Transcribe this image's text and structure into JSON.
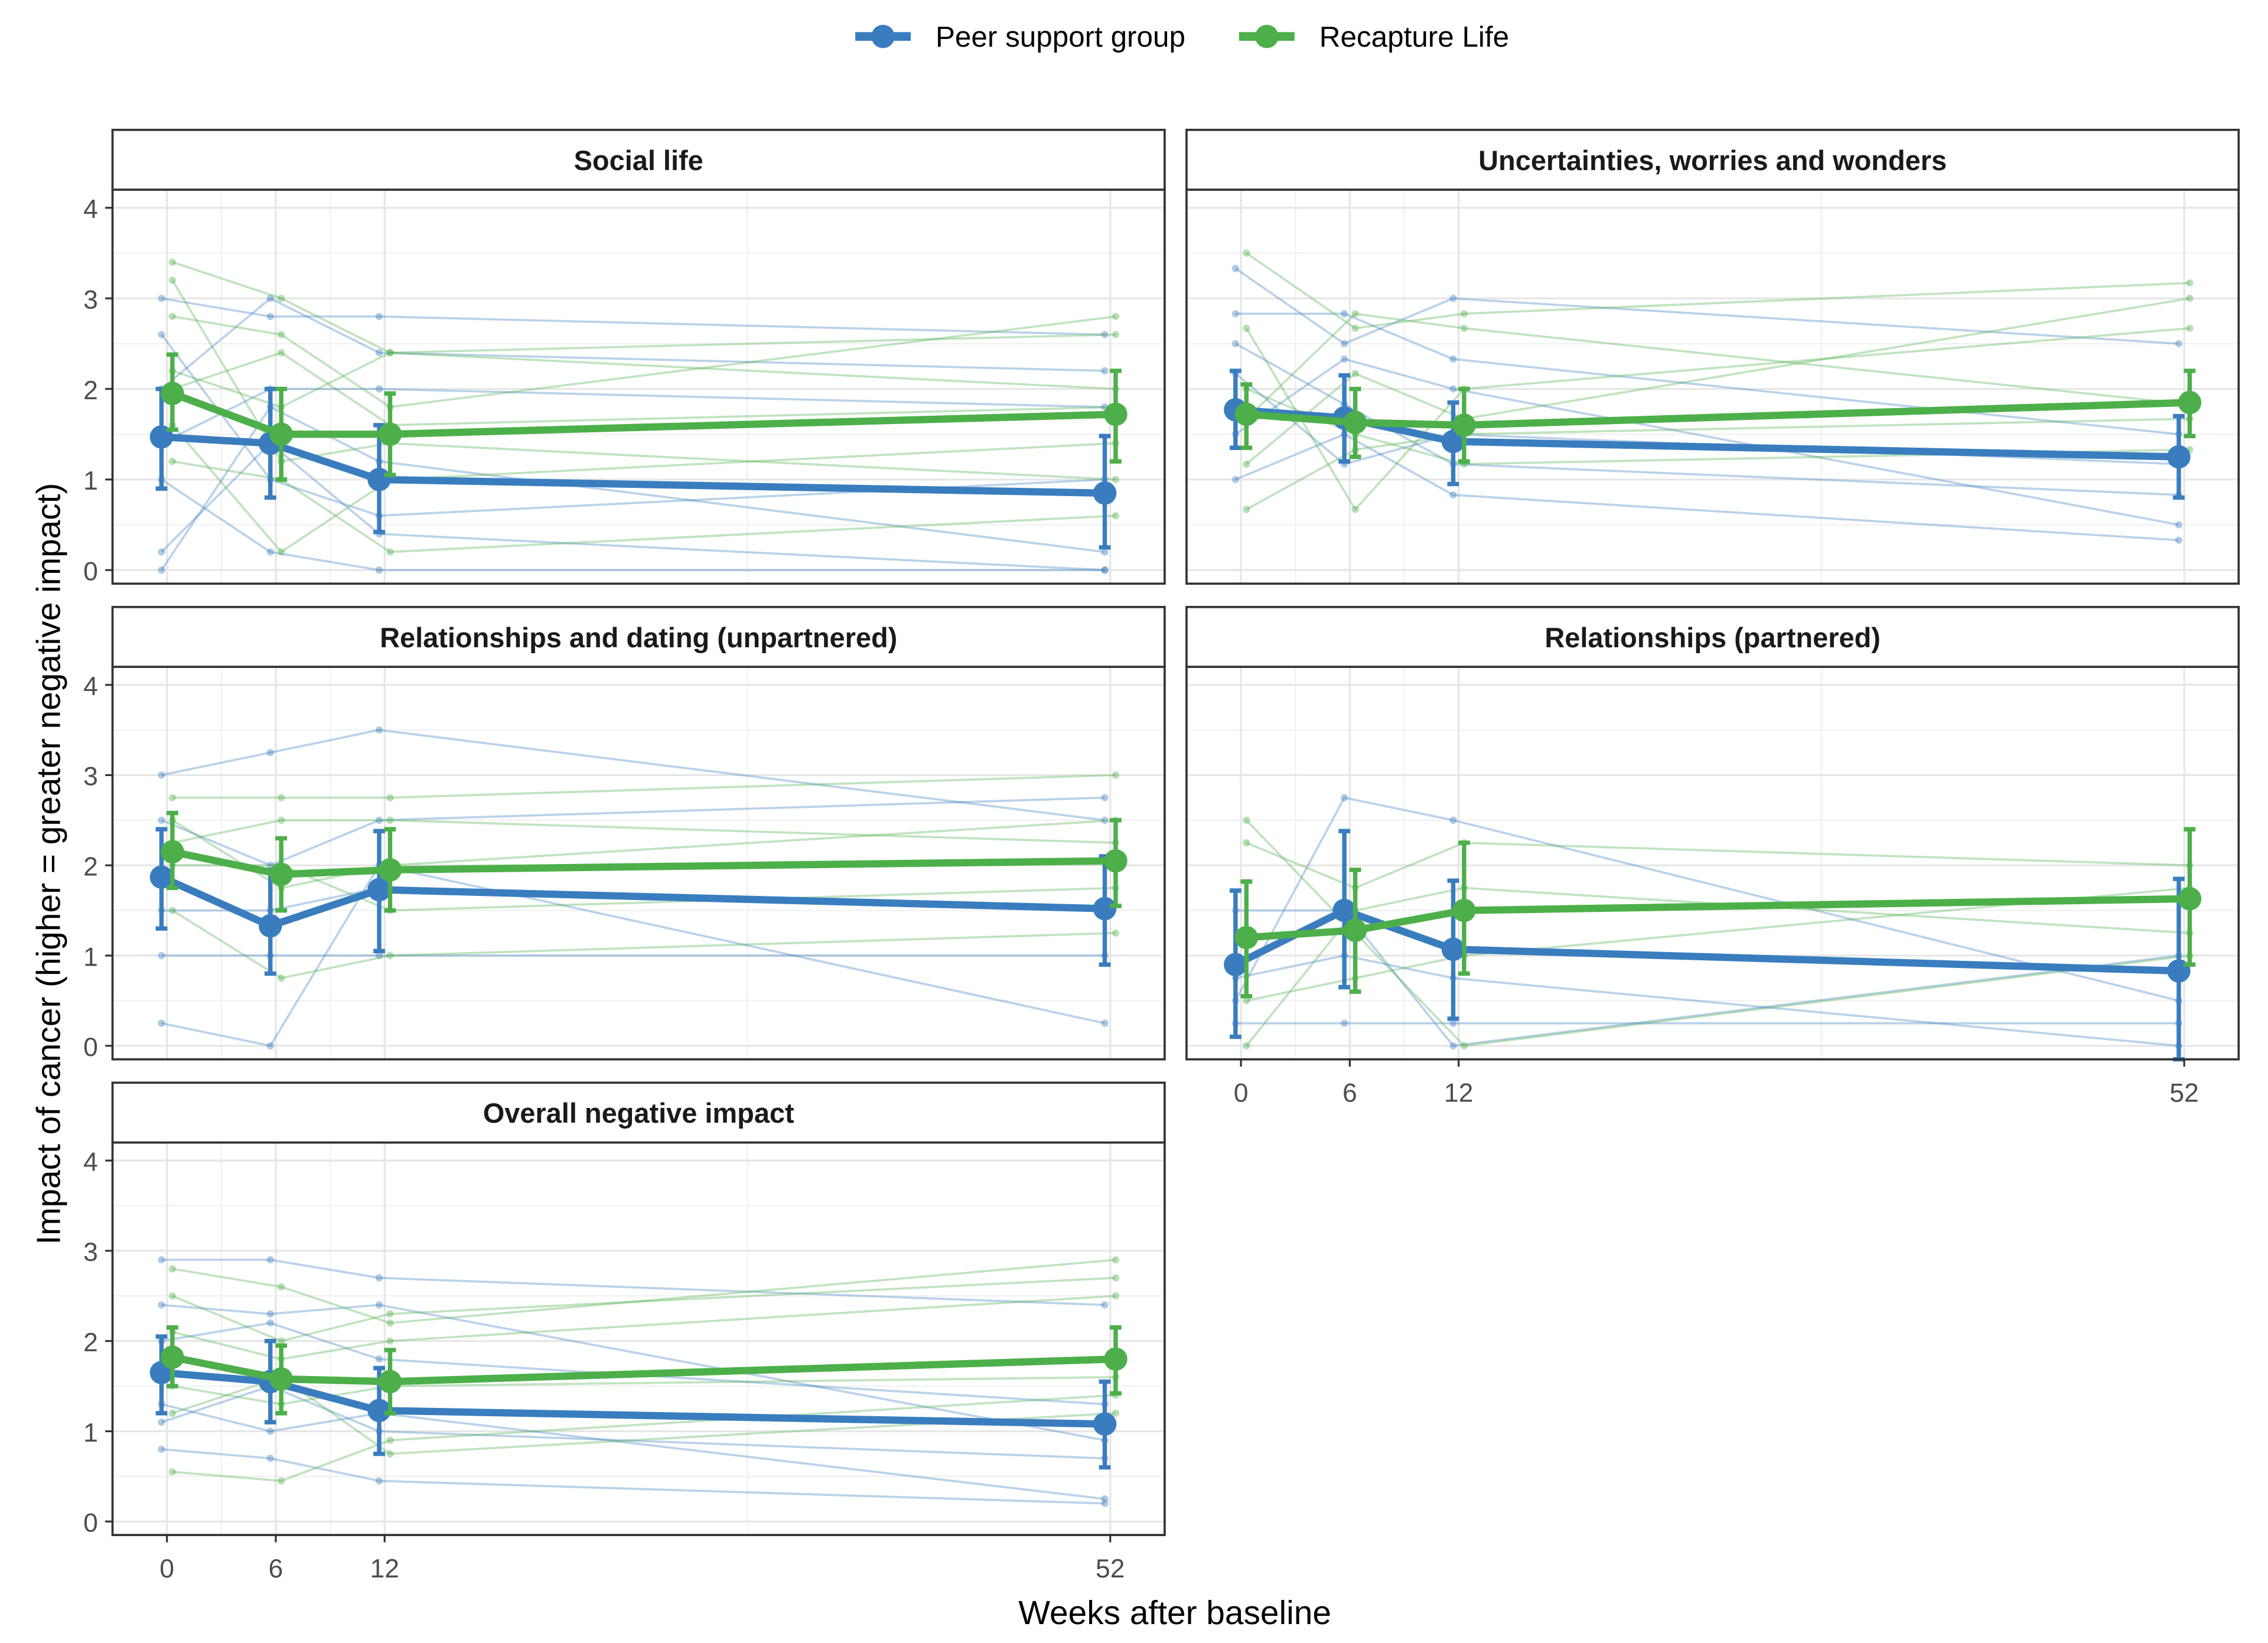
{
  "chart_data": {
    "type": "line",
    "legend": {
      "placement": "top",
      "entries": [
        {
          "name": "Peer support group",
          "color": "#3A7DBF"
        },
        {
          "name": "Recapture Life",
          "color": "#4DAF4A"
        }
      ]
    },
    "xlabel": "Weeks after baseline",
    "ylabel": "Impact of cancer (higher = greater negative impact)",
    "x_ticks": [
      0,
      6,
      12,
      52
    ],
    "y_ticks": [
      0,
      1,
      2,
      3,
      4
    ],
    "ylim": [
      -0.15,
      4.2
    ],
    "xlim": [
      -3,
      55
    ],
    "grid": true,
    "panels": [
      {
        "title": "Social life",
        "series": [
          {
            "name": "Peer support group",
            "mean": [
              1.47,
              1.4,
              1.0,
              0.85
            ],
            "ci_low": [
              0.9,
              0.8,
              0.42,
              0.25
            ],
            "ci_high": [
              2.0,
              2.0,
              1.6,
              1.48
            ],
            "individuals": [
              [
                3.0,
                2.8,
                2.8,
                2.6
              ],
              [
                2.0,
                3.0,
                2.4,
                2.2
              ],
              [
                1.0,
                0.2,
                0.0,
                0.0
              ],
              [
                0.0,
                1.8,
                1.2,
                0.2
              ],
              [
                2.6,
                1.0,
                0.6,
                1.0
              ],
              [
                1.4,
                2.0,
                2.0,
                1.8
              ],
              [
                0.2,
                1.4,
                0.4,
                0.0
              ]
            ]
          },
          {
            "name": "Recapture Life",
            "mean": [
              1.95,
              1.5,
              1.5,
              1.72
            ],
            "ci_low": [
              1.55,
              1.0,
              1.05,
              1.2
            ],
            "ci_high": [
              2.38,
              2.0,
              1.95,
              2.2
            ],
            "individuals": [
              [
                3.4,
                3.0,
                2.4,
                2.6
              ],
              [
                2.8,
                2.6,
                1.8,
                2.8
              ],
              [
                1.6,
                0.2,
                1.0,
                1.4
              ],
              [
                2.2,
                1.8,
                2.4,
                2.0
              ],
              [
                1.2,
                1.0,
                0.2,
                0.6
              ],
              [
                2.0,
                2.4,
                1.6,
                1.8
              ],
              [
                3.2,
                1.2,
                1.4,
                1.0
              ]
            ]
          }
        ]
      },
      {
        "title": "Uncertainties, worries and wonders",
        "series": [
          {
            "name": "Peer support group",
            "mean": [
              1.77,
              1.68,
              1.42,
              1.25
            ],
            "ci_low": [
              1.35,
              1.2,
              0.95,
              0.8
            ],
            "ci_high": [
              2.2,
              2.15,
              1.85,
              1.7
            ],
            "individuals": [
              [
                3.33,
                2.5,
                3.0,
                2.5
              ],
              [
                2.83,
                2.83,
                2.33,
                1.5
              ],
              [
                1.0,
                1.5,
                0.83,
                0.33
              ],
              [
                2.17,
                1.17,
                1.5,
                1.17
              ],
              [
                1.5,
                2.33,
                2.0,
                0.5
              ],
              [
                2.5,
                1.83,
                1.17,
                0.83
              ]
            ]
          },
          {
            "name": "Recapture Life",
            "mean": [
              1.72,
              1.63,
              1.6,
              1.85
            ],
            "ci_low": [
              1.35,
              1.25,
              1.2,
              1.48
            ],
            "ci_high": [
              2.05,
              2.0,
              2.0,
              2.2
            ],
            "individuals": [
              [
                3.5,
                2.67,
                2.83,
                3.17
              ],
              [
                0.67,
                1.33,
                1.5,
                1.67
              ],
              [
                2.67,
                0.67,
                2.0,
                2.67
              ],
              [
                1.17,
                2.17,
                1.67,
                3.0
              ],
              [
                2.0,
                1.5,
                1.17,
                1.33
              ],
              [
                1.67,
                2.83,
                2.67,
                1.83
              ]
            ]
          }
        ]
      },
      {
        "title": "Relationships and dating (unpartnered)",
        "series": [
          {
            "name": "Peer support group",
            "mean": [
              1.87,
              1.33,
              1.73,
              1.52
            ],
            "ci_low": [
              1.3,
              0.8,
              1.05,
              0.9
            ],
            "ci_high": [
              2.4,
              1.95,
              2.38,
              2.1
            ],
            "individuals": [
              [
                3.0,
                3.25,
                3.5,
                2.5
              ],
              [
                0.25,
                0.0,
                2.0,
                0.25
              ],
              [
                1.0,
                1.0,
                1.0,
                1.0
              ],
              [
                2.5,
                2.0,
                2.5,
                2.75
              ],
              [
                1.5,
                1.5,
                1.75,
                1.5
              ]
            ]
          },
          {
            "name": "Recapture Life",
            "mean": [
              2.15,
              1.9,
              1.95,
              2.05
            ],
            "ci_low": [
              1.75,
              1.5,
              1.5,
              1.55
            ],
            "ci_high": [
              2.58,
              2.3,
              2.4,
              2.5
            ],
            "individuals": [
              [
                2.75,
                2.75,
                2.75,
                3.0
              ],
              [
                1.5,
                0.75,
                1.0,
                1.25
              ],
              [
                2.25,
                2.5,
                2.5,
                2.25
              ],
              [
                2.0,
                2.0,
                1.5,
                1.75
              ],
              [
                2.5,
                1.75,
                2.0,
                2.5
              ]
            ]
          }
        ]
      },
      {
        "title": "Relationships (partnered)",
        "series": [
          {
            "name": "Peer support group",
            "mean": [
              0.9,
              1.5,
              1.07,
              0.83
            ],
            "ci_low": [
              0.1,
              0.65,
              0.3,
              -0.2
            ],
            "ci_high": [
              1.72,
              2.38,
              1.83,
              1.85
            ],
            "individuals": [
              [
                0.5,
                2.75,
                2.5,
                0.5
              ],
              [
                0.25,
                0.25,
                0.25,
                0.25
              ],
              [
                1.5,
                1.5,
                0.0,
                1.0
              ],
              [
                0.75,
                1.0,
                0.75,
                0.0
              ]
            ]
          },
          {
            "name": "Recapture Life",
            "mean": [
              1.2,
              1.28,
              1.5,
              1.63
            ],
            "ci_low": [
              0.55,
              0.6,
              0.8,
              0.9
            ],
            "ci_high": [
              1.82,
              1.95,
              2.25,
              2.4
            ],
            "individuals": [
              [
                2.5,
                1.25,
                0.0,
                1.0
              ],
              [
                2.25,
                1.75,
                2.25,
                2.0
              ],
              [
                0.0,
                1.5,
                1.75,
                1.25
              ],
              [
                0.5,
                0.75,
                1.0,
                1.75
              ]
            ]
          }
        ]
      },
      {
        "title": "Overall negative impact",
        "series": [
          {
            "name": "Peer support group",
            "mean": [
              1.65,
              1.55,
              1.23,
              1.08
            ],
            "ci_low": [
              1.2,
              1.1,
              0.75,
              0.6
            ],
            "ci_high": [
              2.05,
              2.0,
              1.7,
              1.55
            ],
            "individuals": [
              [
                2.9,
                2.9,
                2.7,
                2.4
              ],
              [
                0.8,
                0.7,
                0.45,
                0.2
              ],
              [
                2.4,
                2.3,
                2.4,
                0.9
              ],
              [
                1.1,
                1.5,
                1.0,
                0.7
              ],
              [
                2.0,
                2.2,
                1.8,
                1.3
              ],
              [
                1.3,
                1.0,
                1.2,
                0.25
              ]
            ]
          },
          {
            "name": "Recapture Life",
            "mean": [
              1.82,
              1.58,
              1.55,
              1.8
            ],
            "ci_low": [
              1.5,
              1.2,
              1.2,
              1.42
            ],
            "ci_high": [
              2.15,
              1.95,
              1.9,
              2.15
            ],
            "individuals": [
              [
                2.8,
                2.6,
                2.2,
                2.9
              ],
              [
                0.55,
                0.45,
                0.9,
                1.4
              ],
              [
                2.5,
                2.0,
                2.3,
                2.7
              ],
              [
                1.5,
                1.3,
                1.5,
                1.6
              ],
              [
                2.1,
                1.8,
                2.0,
                2.5
              ],
              [
                1.2,
                1.6,
                0.75,
                1.2
              ]
            ]
          }
        ]
      }
    ]
  }
}
